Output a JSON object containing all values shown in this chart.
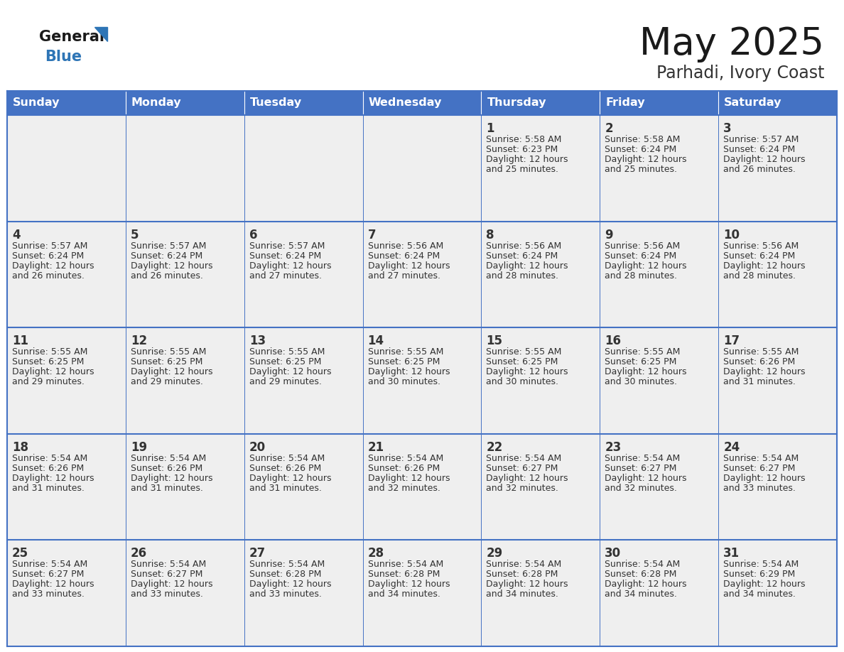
{
  "title": "May 2025",
  "subtitle": "Parhadi, Ivory Coast",
  "days_of_week": [
    "Sunday",
    "Monday",
    "Tuesday",
    "Wednesday",
    "Thursday",
    "Friday",
    "Saturday"
  ],
  "header_bg": "#4472C4",
  "header_text": "#FFFFFF",
  "cell_bg": "#EFEFEF",
  "border_color": "#4472C4",
  "day_num_color": "#333333",
  "cell_text_color": "#333333",
  "title_color": "#1a1a1a",
  "subtitle_color": "#333333",
  "logo_general_color": "#1a1a1a",
  "logo_blue_color": "#2E75B6",
  "weeks": [
    [
      {
        "day": "",
        "sunrise": "",
        "sunset": "",
        "daylight": ""
      },
      {
        "day": "",
        "sunrise": "",
        "sunset": "",
        "daylight": ""
      },
      {
        "day": "",
        "sunrise": "",
        "sunset": "",
        "daylight": ""
      },
      {
        "day": "",
        "sunrise": "",
        "sunset": "",
        "daylight": ""
      },
      {
        "day": "1",
        "sunrise": "Sunrise: 5:58 AM",
        "sunset": "Sunset: 6:23 PM",
        "daylight": "Daylight: 12 hours\nand 25 minutes."
      },
      {
        "day": "2",
        "sunrise": "Sunrise: 5:58 AM",
        "sunset": "Sunset: 6:24 PM",
        "daylight": "Daylight: 12 hours\nand 25 minutes."
      },
      {
        "day": "3",
        "sunrise": "Sunrise: 5:57 AM",
        "sunset": "Sunset: 6:24 PM",
        "daylight": "Daylight: 12 hours\nand 26 minutes."
      }
    ],
    [
      {
        "day": "4",
        "sunrise": "Sunrise: 5:57 AM",
        "sunset": "Sunset: 6:24 PM",
        "daylight": "Daylight: 12 hours\nand 26 minutes."
      },
      {
        "day": "5",
        "sunrise": "Sunrise: 5:57 AM",
        "sunset": "Sunset: 6:24 PM",
        "daylight": "Daylight: 12 hours\nand 26 minutes."
      },
      {
        "day": "6",
        "sunrise": "Sunrise: 5:57 AM",
        "sunset": "Sunset: 6:24 PM",
        "daylight": "Daylight: 12 hours\nand 27 minutes."
      },
      {
        "day": "7",
        "sunrise": "Sunrise: 5:56 AM",
        "sunset": "Sunset: 6:24 PM",
        "daylight": "Daylight: 12 hours\nand 27 minutes."
      },
      {
        "day": "8",
        "sunrise": "Sunrise: 5:56 AM",
        "sunset": "Sunset: 6:24 PM",
        "daylight": "Daylight: 12 hours\nand 28 minutes."
      },
      {
        "day": "9",
        "sunrise": "Sunrise: 5:56 AM",
        "sunset": "Sunset: 6:24 PM",
        "daylight": "Daylight: 12 hours\nand 28 minutes."
      },
      {
        "day": "10",
        "sunrise": "Sunrise: 5:56 AM",
        "sunset": "Sunset: 6:24 PM",
        "daylight": "Daylight: 12 hours\nand 28 minutes."
      }
    ],
    [
      {
        "day": "11",
        "sunrise": "Sunrise: 5:55 AM",
        "sunset": "Sunset: 6:25 PM",
        "daylight": "Daylight: 12 hours\nand 29 minutes."
      },
      {
        "day": "12",
        "sunrise": "Sunrise: 5:55 AM",
        "sunset": "Sunset: 6:25 PM",
        "daylight": "Daylight: 12 hours\nand 29 minutes."
      },
      {
        "day": "13",
        "sunrise": "Sunrise: 5:55 AM",
        "sunset": "Sunset: 6:25 PM",
        "daylight": "Daylight: 12 hours\nand 29 minutes."
      },
      {
        "day": "14",
        "sunrise": "Sunrise: 5:55 AM",
        "sunset": "Sunset: 6:25 PM",
        "daylight": "Daylight: 12 hours\nand 30 minutes."
      },
      {
        "day": "15",
        "sunrise": "Sunrise: 5:55 AM",
        "sunset": "Sunset: 6:25 PM",
        "daylight": "Daylight: 12 hours\nand 30 minutes."
      },
      {
        "day": "16",
        "sunrise": "Sunrise: 5:55 AM",
        "sunset": "Sunset: 6:25 PM",
        "daylight": "Daylight: 12 hours\nand 30 minutes."
      },
      {
        "day": "17",
        "sunrise": "Sunrise: 5:55 AM",
        "sunset": "Sunset: 6:26 PM",
        "daylight": "Daylight: 12 hours\nand 31 minutes."
      }
    ],
    [
      {
        "day": "18",
        "sunrise": "Sunrise: 5:54 AM",
        "sunset": "Sunset: 6:26 PM",
        "daylight": "Daylight: 12 hours\nand 31 minutes."
      },
      {
        "day": "19",
        "sunrise": "Sunrise: 5:54 AM",
        "sunset": "Sunset: 6:26 PM",
        "daylight": "Daylight: 12 hours\nand 31 minutes."
      },
      {
        "day": "20",
        "sunrise": "Sunrise: 5:54 AM",
        "sunset": "Sunset: 6:26 PM",
        "daylight": "Daylight: 12 hours\nand 31 minutes."
      },
      {
        "day": "21",
        "sunrise": "Sunrise: 5:54 AM",
        "sunset": "Sunset: 6:26 PM",
        "daylight": "Daylight: 12 hours\nand 32 minutes."
      },
      {
        "day": "22",
        "sunrise": "Sunrise: 5:54 AM",
        "sunset": "Sunset: 6:27 PM",
        "daylight": "Daylight: 12 hours\nand 32 minutes."
      },
      {
        "day": "23",
        "sunrise": "Sunrise: 5:54 AM",
        "sunset": "Sunset: 6:27 PM",
        "daylight": "Daylight: 12 hours\nand 32 minutes."
      },
      {
        "day": "24",
        "sunrise": "Sunrise: 5:54 AM",
        "sunset": "Sunset: 6:27 PM",
        "daylight": "Daylight: 12 hours\nand 33 minutes."
      }
    ],
    [
      {
        "day": "25",
        "sunrise": "Sunrise: 5:54 AM",
        "sunset": "Sunset: 6:27 PM",
        "daylight": "Daylight: 12 hours\nand 33 minutes."
      },
      {
        "day": "26",
        "sunrise": "Sunrise: 5:54 AM",
        "sunset": "Sunset: 6:27 PM",
        "daylight": "Daylight: 12 hours\nand 33 minutes."
      },
      {
        "day": "27",
        "sunrise": "Sunrise: 5:54 AM",
        "sunset": "Sunset: 6:28 PM",
        "daylight": "Daylight: 12 hours\nand 33 minutes."
      },
      {
        "day": "28",
        "sunrise": "Sunrise: 5:54 AM",
        "sunset": "Sunset: 6:28 PM",
        "daylight": "Daylight: 12 hours\nand 34 minutes."
      },
      {
        "day": "29",
        "sunrise": "Sunrise: 5:54 AM",
        "sunset": "Sunset: 6:28 PM",
        "daylight": "Daylight: 12 hours\nand 34 minutes."
      },
      {
        "day": "30",
        "sunrise": "Sunrise: 5:54 AM",
        "sunset": "Sunset: 6:28 PM",
        "daylight": "Daylight: 12 hours\nand 34 minutes."
      },
      {
        "day": "31",
        "sunrise": "Sunrise: 5:54 AM",
        "sunset": "Sunset: 6:29 PM",
        "daylight": "Daylight: 12 hours\nand 34 minutes."
      }
    ]
  ]
}
